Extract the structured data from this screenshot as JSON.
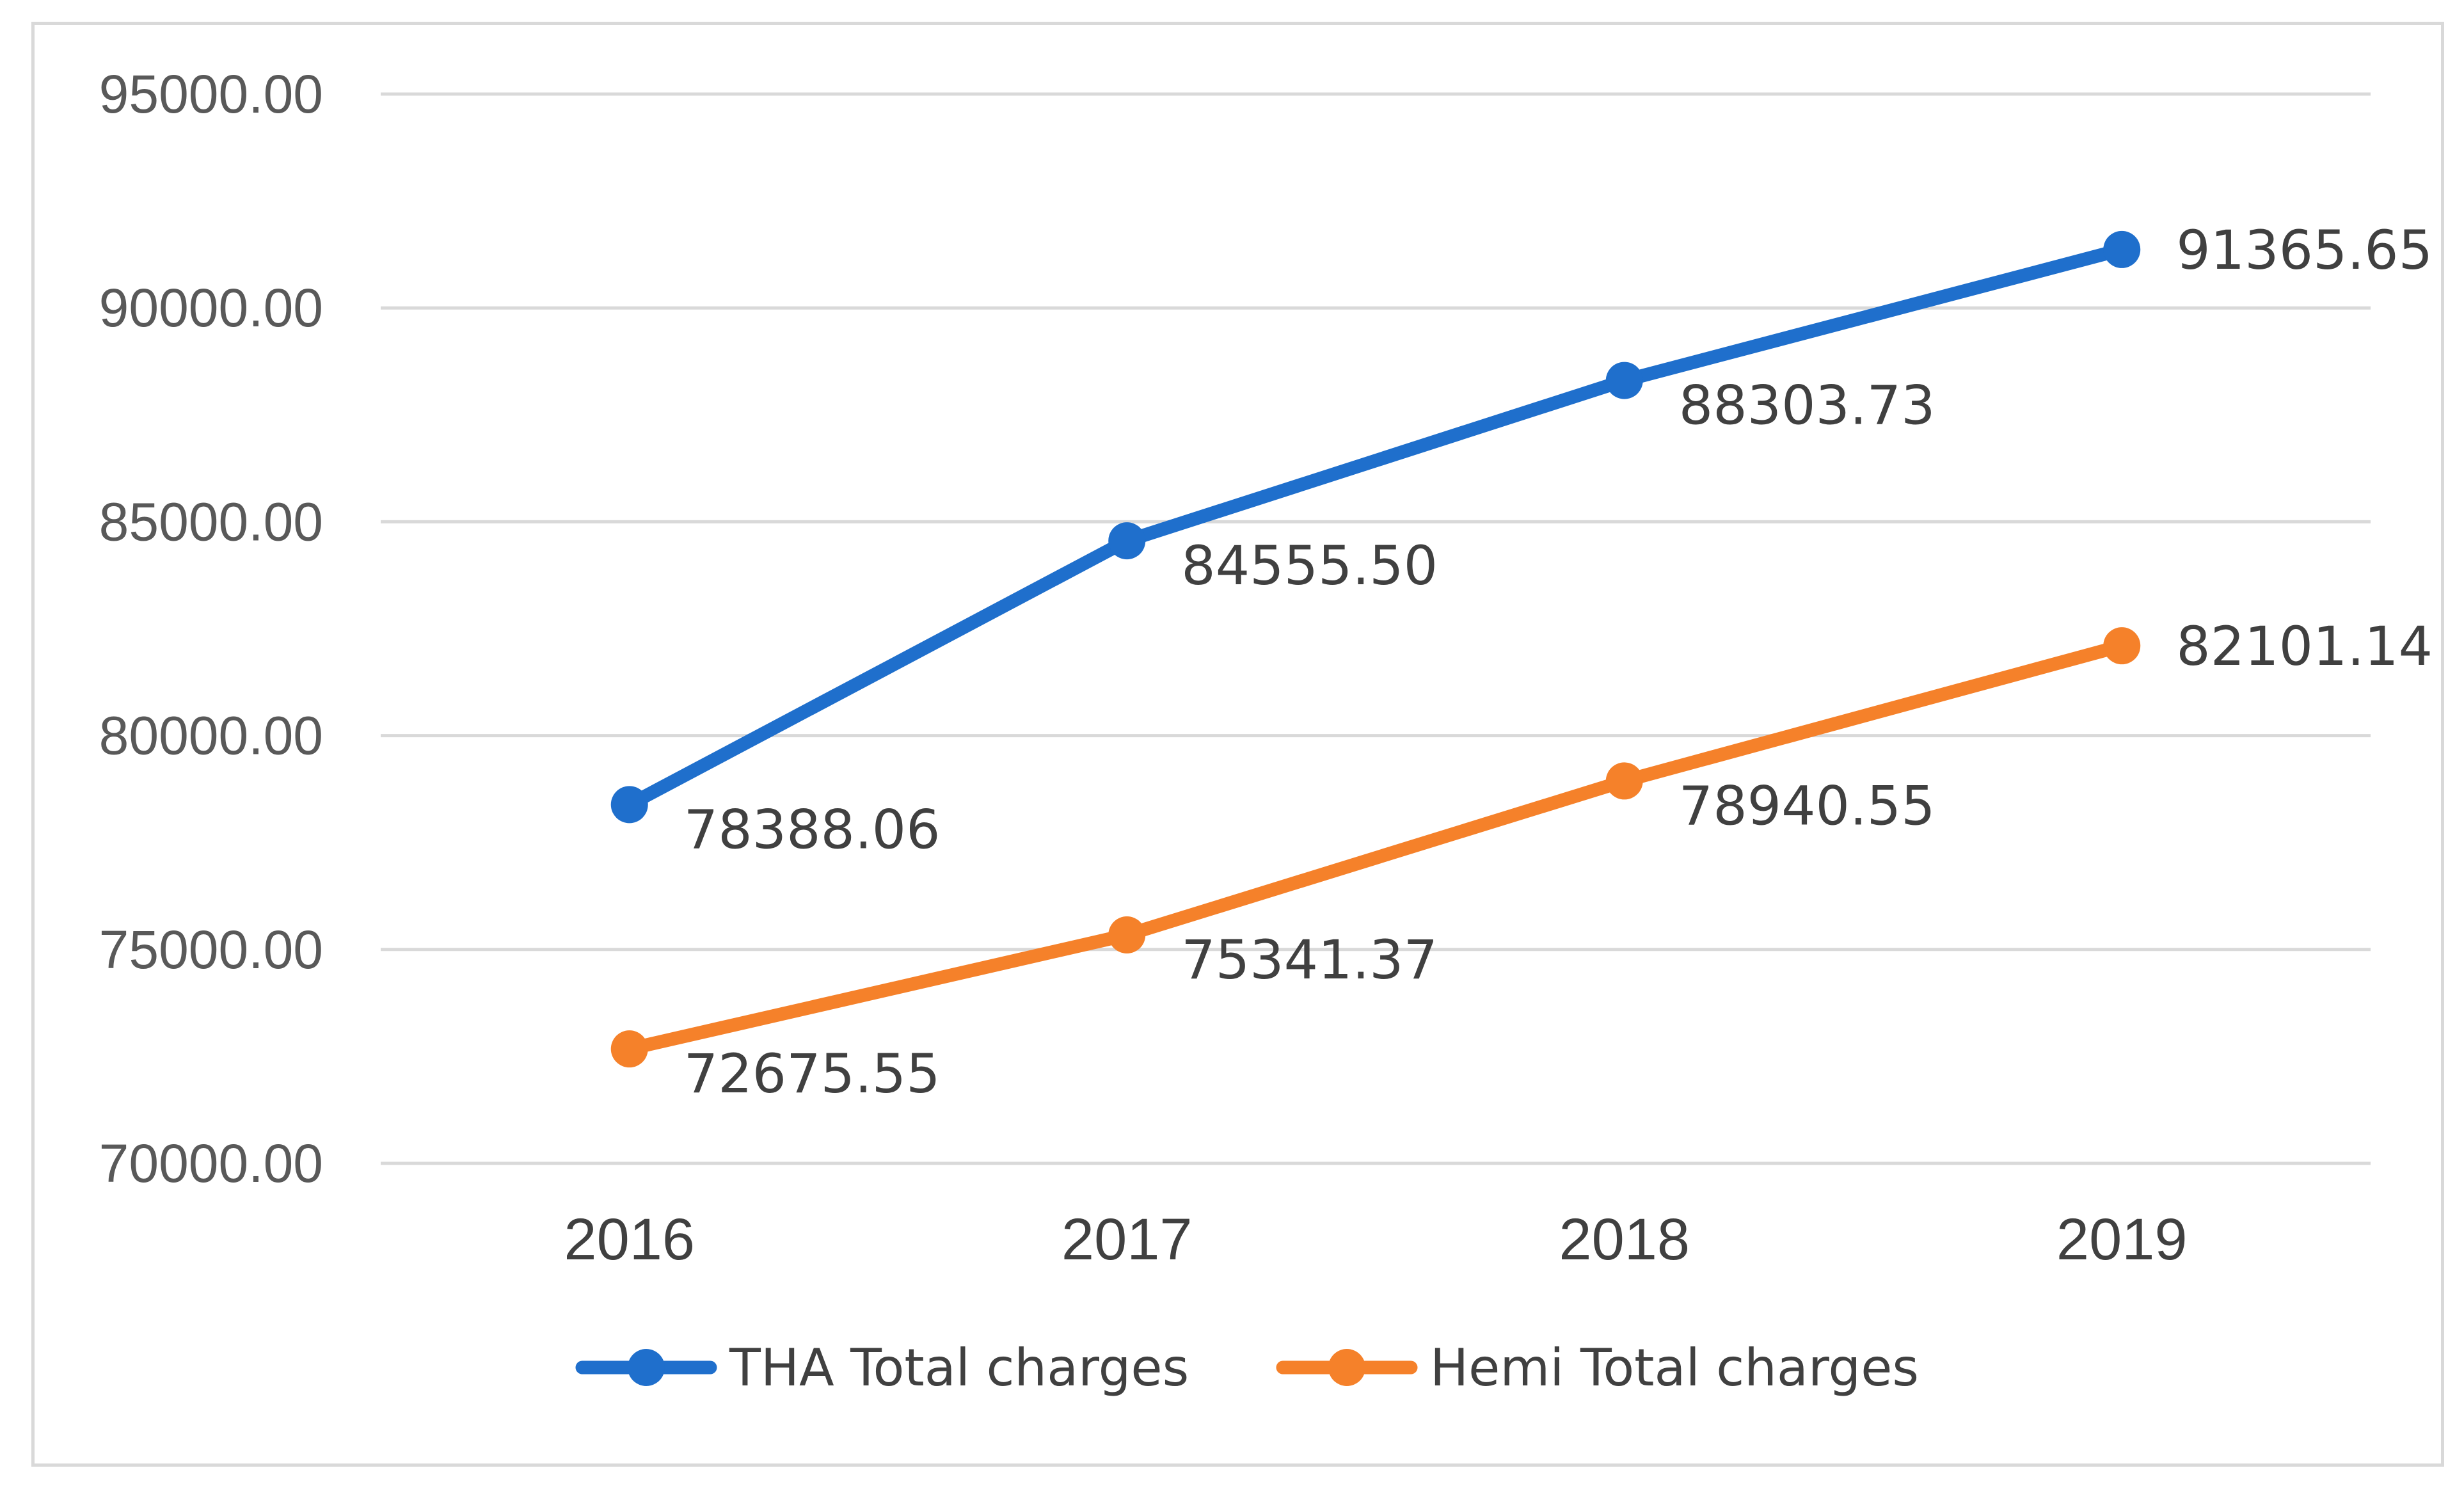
{
  "chart_data": {
    "type": "line",
    "title": "",
    "xlabel": "",
    "ylabel": "",
    "categories": [
      "2016",
      "2017",
      "2018",
      "2019"
    ],
    "ylim": [
      70000,
      95000
    ],
    "yticks": [
      "70000.00",
      "75000.00",
      "80000.00",
      "85000.00",
      "90000.00",
      "95000.00"
    ],
    "grid": "horizontal",
    "legend_position": "bottom",
    "series": [
      {
        "name": "THA Total charges",
        "color": "#1f6fcc",
        "values": [
          78388.06,
          84555.5,
          88303.73,
          91365.65
        ],
        "labels": [
          "78388.06",
          "84555.50",
          "88303.73",
          "91365.65"
        ]
      },
      {
        "name": "Hemi Total charges",
        "color": "#f5812a",
        "values": [
          72675.55,
          75341.37,
          78940.55,
          82101.14
        ],
        "labels": [
          "72675.55",
          "75341.37",
          "78940.55",
          "82101.14"
        ]
      }
    ]
  }
}
